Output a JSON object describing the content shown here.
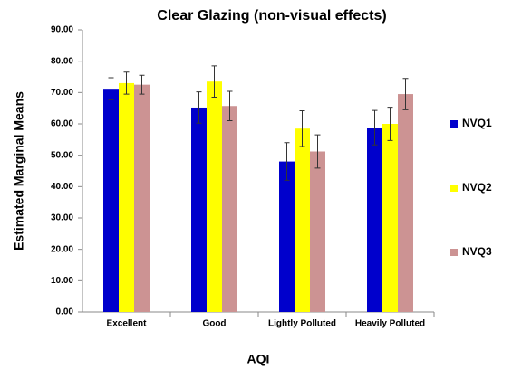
{
  "chart_data": {
    "type": "bar",
    "title": "Clear Glazing (non-visual effects)",
    "x_label": "AQI",
    "y_label": "Estimated Marginal Means",
    "categories": [
      "Excellent",
      "Good",
      "Lightly Polluted",
      "Heavily Polluted"
    ],
    "series": [
      {
        "name": "NVQ1",
        "color": "#0000cc",
        "values": [
          71.2,
          65.2,
          48.0,
          58.8
        ],
        "errors": [
          3.5,
          5.0,
          6.0,
          5.5
        ]
      },
      {
        "name": "NVQ2",
        "color": "#ffff00",
        "values": [
          73.0,
          73.5,
          58.5,
          60.0
        ],
        "errors": [
          3.5,
          5.0,
          5.7,
          5.3
        ]
      },
      {
        "name": "NVQ3",
        "color": "#cc9393",
        "values": [
          72.5,
          65.7,
          51.2,
          69.5
        ],
        "errors": [
          3.0,
          4.7,
          5.3,
          5.0
        ]
      }
    ],
    "ylim": [
      0,
      90
    ],
    "yticks": [
      {
        "value": 0,
        "label": "0.00"
      },
      {
        "value": 10,
        "label": "10.00"
      },
      {
        "value": 20,
        "label": "20.00"
      },
      {
        "value": 30,
        "label": "30.00"
      },
      {
        "value": 40,
        "label": "40.00"
      },
      {
        "value": 50,
        "label": "50.00"
      },
      {
        "value": 60,
        "label": "60.00"
      },
      {
        "value": 70,
        "label": "70.00"
      },
      {
        "value": 80,
        "label": "80.00"
      },
      {
        "value": 90,
        "label": "90.00"
      }
    ],
    "grid": false,
    "legend": "right"
  }
}
